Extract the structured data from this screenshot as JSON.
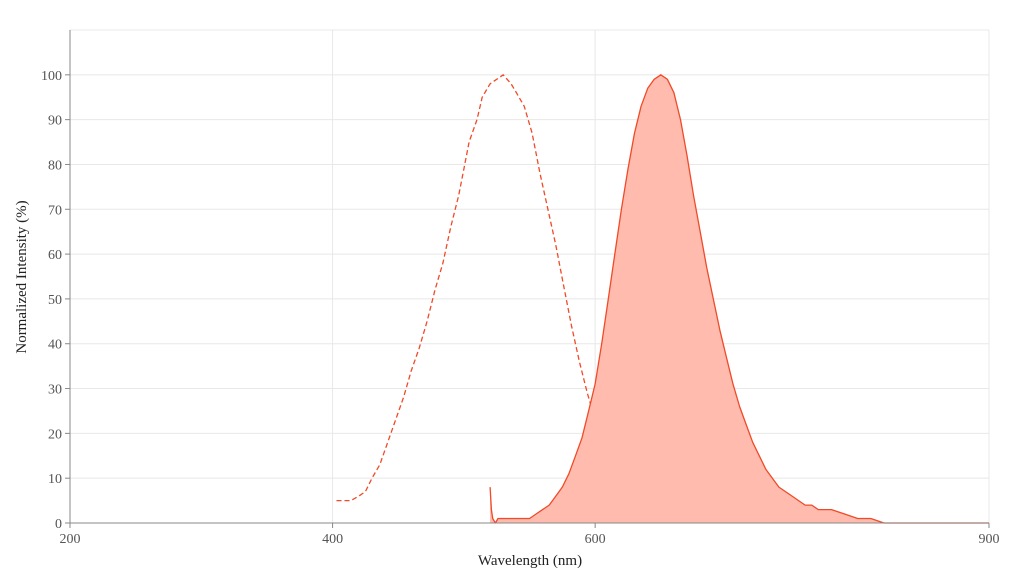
{
  "chart_data": {
    "type": "area",
    "xlabel": "Wavelength (nm)",
    "ylabel": "Normalized Intensity (%)",
    "xlim": [
      200,
      900
    ],
    "ylim": [
      0,
      110
    ],
    "x_ticks": [
      200,
      400,
      600,
      900
    ],
    "y_ticks": [
      0,
      10,
      20,
      30,
      40,
      50,
      60,
      70,
      80,
      90,
      100
    ],
    "grid": true,
    "legend": "none",
    "colors": {
      "line": "#f04a28",
      "fill": "#ffbbad",
      "grid": "#e8e8e8",
      "axis": "#888888"
    },
    "series": [
      {
        "style": "dashed",
        "filled": false,
        "x": [
          403,
          414,
          420,
          425,
          430,
          436,
          442,
          448,
          454,
          460,
          466,
          472,
          478,
          484,
          490,
          496,
          500,
          504,
          510,
          514,
          520,
          525,
          530,
          536,
          540,
          546,
          552,
          558,
          564,
          570,
          576,
          582,
          588,
          594,
          600,
          606,
          612,
          618,
          624,
          630,
          636,
          640,
          643,
          646,
          650
        ],
        "y": [
          5,
          5,
          6,
          7,
          10,
          13,
          18,
          23,
          28,
          34,
          39,
          45,
          52,
          58,
          66,
          73,
          79,
          85,
          90,
          95,
          98,
          99,
          100,
          98,
          96,
          93,
          87,
          78,
          70,
          62,
          53,
          44,
          36,
          29,
          23,
          18,
          13,
          10,
          8,
          7,
          6,
          5,
          5,
          6,
          6
        ]
      },
      {
        "style": "solid",
        "filled": true,
        "x": [
          520,
          521,
          522,
          524,
          526,
          530,
          540,
          550,
          555,
          560,
          565,
          570,
          575,
          580,
          585,
          590,
          595,
          600,
          605,
          610,
          615,
          620,
          625,
          630,
          635,
          640,
          645,
          650,
          655,
          660,
          665,
          670,
          675,
          680,
          685,
          690,
          695,
          700,
          705,
          710,
          715,
          720,
          725,
          730,
          735,
          740,
          745,
          750,
          755,
          760,
          765,
          770,
          780,
          790,
          800,
          810,
          820,
          830,
          840,
          850,
          860,
          870,
          880,
          890,
          900
        ],
        "y": [
          8,
          3,
          1,
          0,
          1,
          1,
          1,
          1,
          2,
          3,
          4,
          6,
          8,
          11,
          15,
          19,
          25,
          31,
          40,
          50,
          60,
          70,
          79,
          87,
          93,
          97,
          99,
          100,
          99,
          96,
          90,
          82,
          73,
          65,
          57,
          50,
          43,
          37,
          31,
          26,
          22,
          18,
          15,
          12,
          10,
          8,
          7,
          6,
          5,
          4,
          4,
          3,
          3,
          2,
          1,
          1,
          0,
          0,
          0,
          0,
          0,
          0,
          0,
          0,
          0
        ]
      }
    ]
  }
}
